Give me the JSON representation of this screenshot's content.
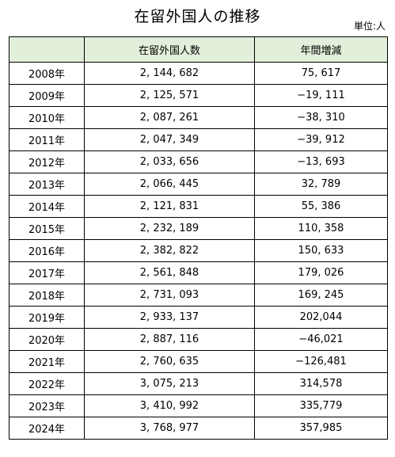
{
  "title": "在留外国人の推移",
  "unit_label": "単位:人",
  "table": {
    "headers": [
      "",
      "在留外国人数",
      "年間増減"
    ],
    "rows": [
      [
        "2008年",
        "2, 144, 682",
        "75, 617"
      ],
      [
        "2009年",
        "2, 125, 571",
        "−19, 111"
      ],
      [
        "2010年",
        "2, 087, 261",
        "−38, 310"
      ],
      [
        "2011年",
        "2, 047, 349",
        "−39, 912"
      ],
      [
        "2012年",
        "2, 033, 656",
        "−13, 693"
      ],
      [
        "2013年",
        "2, 066, 445",
        "32, 789"
      ],
      [
        "2014年",
        "2, 121, 831",
        "55, 386"
      ],
      [
        "2015年",
        "2, 232, 189",
        "110, 358"
      ],
      [
        "2016年",
        "2, 382, 822",
        "150, 633"
      ],
      [
        "2017年",
        "2, 561, 848",
        "179, 026"
      ],
      [
        "2018年",
        "2, 731, 093",
        "169, 245"
      ],
      [
        "2019年",
        "2, 933, 137",
        "202,044"
      ],
      [
        "2020年",
        "2, 887, 116",
        "−46,021"
      ],
      [
        "2021年",
        "2, 760, 635",
        "−126,481"
      ],
      [
        "2022年",
        "3, 075, 213",
        "314,578"
      ],
      [
        "2023年",
        "3, 410, 992",
        "335,779"
      ],
      [
        "2024年",
        "3, 768, 977",
        "357,985"
      ]
    ]
  }
}
